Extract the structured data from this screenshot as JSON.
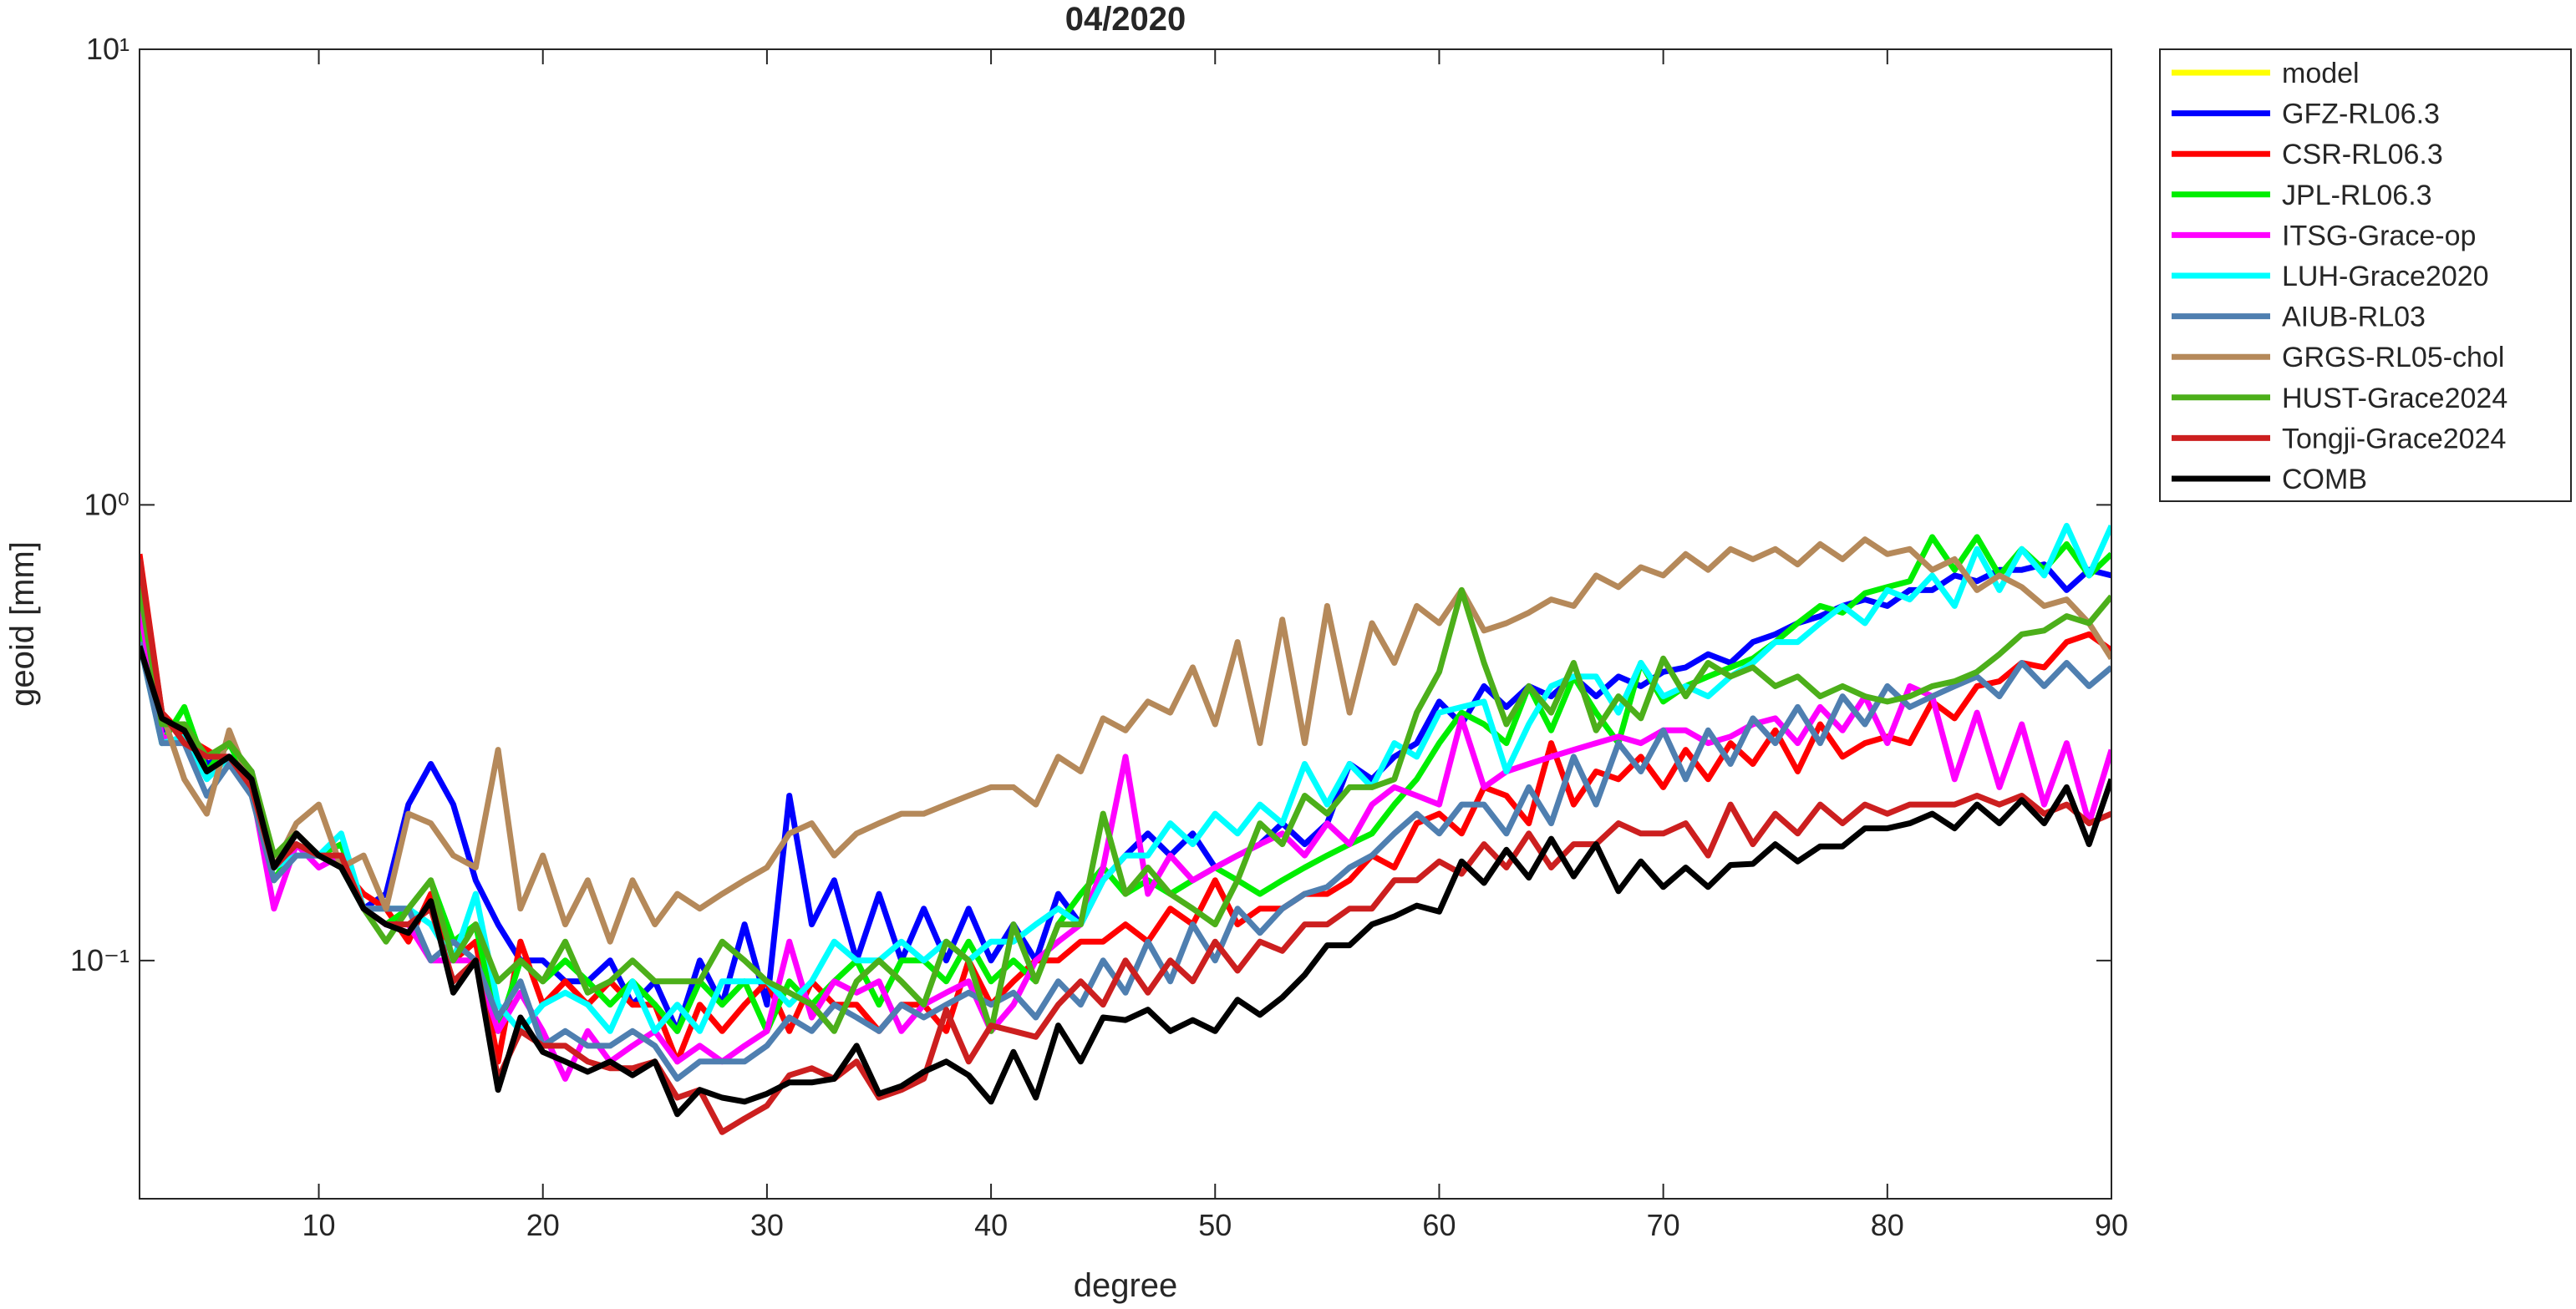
{
  "chart_data": {
    "type": "line",
    "title": "04/2020",
    "x_label": "degree",
    "y_label": "geoid [mm]",
    "yscale": "log",
    "grid": false,
    "legend": "northeastoutside",
    "xlim": [
      2,
      90
    ],
    "ylim": [
      0.03,
      10
    ],
    "xticks": [
      10,
      20,
      30,
      40,
      50,
      60,
      70,
      80,
      90
    ],
    "yticks": [
      {
        "value": 0.1,
        "label": "10⁻¹"
      },
      {
        "value": 1,
        "label": "10⁰"
      },
      {
        "value": 10,
        "label": "10¹"
      }
    ],
    "x": [
      2,
      3,
      4,
      5,
      6,
      7,
      8,
      9,
      10,
      11,
      12,
      13,
      14,
      15,
      16,
      17,
      18,
      19,
      20,
      21,
      22,
      23,
      24,
      25,
      26,
      27,
      28,
      29,
      30,
      31,
      32,
      33,
      34,
      35,
      36,
      37,
      38,
      39,
      40,
      41,
      42,
      43,
      44,
      45,
      46,
      47,
      48,
      49,
      50,
      51,
      52,
      53,
      54,
      55,
      56,
      57,
      58,
      59,
      60,
      61,
      62,
      63,
      64,
      65,
      66,
      67,
      68,
      69,
      70,
      71,
      72,
      73,
      74,
      75,
      76,
      77,
      78,
      79,
      80,
      81,
      82,
      83,
      84,
      85,
      86,
      87,
      88,
      89,
      90
    ],
    "series": [
      {
        "name": "model",
        "color": "#ffff00",
        "values": [
          null,
          null,
          null,
          null,
          null,
          null,
          null,
          null,
          null,
          null,
          null,
          null,
          null,
          null,
          null,
          null,
          null,
          null,
          null,
          null,
          null,
          null,
          null,
          null,
          null,
          null,
          null,
          null,
          null,
          null,
          null,
          null,
          null,
          null,
          null,
          null,
          null,
          null,
          null,
          null,
          null,
          null,
          null,
          null,
          null,
          null,
          null,
          null,
          null,
          null,
          null,
          null,
          null,
          null,
          null,
          null,
          null,
          null,
          null,
          null,
          null,
          null,
          null,
          null,
          null,
          null,
          null,
          null,
          null,
          null,
          null,
          null,
          null,
          null,
          null,
          null,
          null,
          null,
          null,
          null,
          null,
          null,
          null,
          null,
          null,
          null,
          null,
          null,
          null
        ]
      },
      {
        "name": "GFZ-RL06.3",
        "color": "#0000ff",
        "values": [
          0.6,
          0.32,
          0.33,
          0.27,
          0.28,
          0.26,
          0.16,
          0.19,
          0.17,
          0.16,
          0.13,
          0.14,
          0.22,
          0.27,
          0.22,
          0.15,
          0.12,
          0.1,
          0.1,
          0.09,
          0.09,
          0.1,
          0.08,
          0.09,
          0.07,
          0.1,
          0.08,
          0.12,
          0.08,
          0.23,
          0.12,
          0.15,
          0.1,
          0.14,
          0.1,
          0.13,
          0.1,
          0.13,
          0.1,
          0.12,
          0.1,
          0.14,
          0.12,
          0.15,
          0.17,
          0.19,
          0.17,
          0.19,
          0.16,
          0.17,
          0.18,
          0.2,
          0.18,
          0.2,
          0.27,
          0.25,
          0.28,
          0.3,
          0.37,
          0.33,
          0.4,
          0.36,
          0.4,
          0.38,
          0.42,
          0.38,
          0.42,
          0.4,
          0.43,
          0.44,
          0.47,
          0.45,
          0.5,
          0.52,
          0.55,
          0.57,
          0.6,
          0.62,
          0.6,
          0.65,
          0.65,
          0.7,
          0.68,
          0.72,
          0.72,
          0.74,
          0.65,
          0.72,
          0.7
        ]
      },
      {
        "name": "CSR-RL06.3",
        "color": "#ff0000",
        "values": [
          0.78,
          0.35,
          0.31,
          0.29,
          0.27,
          0.25,
          0.16,
          0.19,
          0.17,
          0.16,
          0.14,
          0.13,
          0.11,
          0.14,
          0.1,
          0.11,
          0.06,
          0.11,
          0.08,
          0.09,
          0.08,
          0.09,
          0.08,
          0.08,
          0.06,
          0.08,
          0.07,
          0.08,
          0.09,
          0.07,
          0.09,
          0.08,
          0.08,
          0.07,
          0.08,
          0.08,
          0.07,
          0.1,
          0.08,
          0.09,
          0.1,
          0.1,
          0.11,
          0.11,
          0.12,
          0.11,
          0.13,
          0.12,
          0.15,
          0.12,
          0.13,
          0.13,
          0.14,
          0.14,
          0.15,
          0.17,
          0.16,
          0.2,
          0.21,
          0.19,
          0.24,
          0.23,
          0.2,
          0.3,
          0.22,
          0.26,
          0.25,
          0.28,
          0.24,
          0.29,
          0.25,
          0.3,
          0.27,
          0.32,
          0.26,
          0.33,
          0.28,
          0.3,
          0.31,
          0.3,
          0.37,
          0.34,
          0.4,
          0.41,
          0.45,
          0.44,
          0.5,
          0.52,
          0.48
        ]
      },
      {
        "name": "JPL-RL06.3",
        "color": "#00ee00",
        "values": [
          0.55,
          0.3,
          0.36,
          0.26,
          0.3,
          0.24,
          0.15,
          0.18,
          0.17,
          0.18,
          0.13,
          0.12,
          0.13,
          0.15,
          0.11,
          0.12,
          0.07,
          0.1,
          0.09,
          0.1,
          0.09,
          0.08,
          0.09,
          0.08,
          0.07,
          0.09,
          0.08,
          0.09,
          0.07,
          0.09,
          0.08,
          0.09,
          0.1,
          0.08,
          0.1,
          0.1,
          0.09,
          0.11,
          0.09,
          0.1,
          0.09,
          0.12,
          0.14,
          0.16,
          0.14,
          0.15,
          0.14,
          0.15,
          0.16,
          0.15,
          0.14,
          0.15,
          0.16,
          0.17,
          0.18,
          0.19,
          0.22,
          0.25,
          0.3,
          0.35,
          0.33,
          0.3,
          0.4,
          0.32,
          0.42,
          0.35,
          0.3,
          0.45,
          0.37,
          0.4,
          0.42,
          0.44,
          0.46,
          0.5,
          0.55,
          0.6,
          0.58,
          0.64,
          0.66,
          0.68,
          0.85,
          0.72,
          0.85,
          0.7,
          0.8,
          0.72,
          0.82,
          0.7,
          0.78
        ]
      },
      {
        "name": "ITSG-Grace-op",
        "color": "#ff00ff",
        "values": [
          0.6,
          0.31,
          0.3,
          0.28,
          0.28,
          0.24,
          0.13,
          0.18,
          0.16,
          0.17,
          0.13,
          0.12,
          0.12,
          0.1,
          0.1,
          0.1,
          0.07,
          0.085,
          0.07,
          0.055,
          0.07,
          0.06,
          0.065,
          0.07,
          0.06,
          0.065,
          0.06,
          0.065,
          0.07,
          0.11,
          0.075,
          0.09,
          0.085,
          0.09,
          0.07,
          0.08,
          0.085,
          0.09,
          0.07,
          0.08,
          0.1,
          0.11,
          0.12,
          0.16,
          0.28,
          0.14,
          0.17,
          0.15,
          0.16,
          0.17,
          0.18,
          0.19,
          0.17,
          0.2,
          0.18,
          0.22,
          0.24,
          0.23,
          0.22,
          0.34,
          0.24,
          0.26,
          0.27,
          0.28,
          0.29,
          0.3,
          0.31,
          0.3,
          0.32,
          0.32,
          0.3,
          0.31,
          0.33,
          0.34,
          0.3,
          0.36,
          0.32,
          0.38,
          0.3,
          0.4,
          0.38,
          0.25,
          0.35,
          0.24,
          0.33,
          0.22,
          0.3,
          0.2,
          0.29
        ]
      },
      {
        "name": "LUH-Grace2020",
        "color": "#00ffff",
        "values": [
          0.5,
          0.3,
          0.31,
          0.25,
          0.28,
          0.24,
          0.16,
          0.17,
          0.17,
          0.19,
          0.13,
          0.13,
          0.13,
          0.12,
          0.1,
          0.14,
          0.08,
          0.07,
          0.08,
          0.085,
          0.08,
          0.07,
          0.09,
          0.07,
          0.08,
          0.07,
          0.09,
          0.09,
          0.09,
          0.08,
          0.09,
          0.11,
          0.1,
          0.1,
          0.11,
          0.1,
          0.11,
          0.1,
          0.11,
          0.11,
          0.12,
          0.13,
          0.12,
          0.15,
          0.17,
          0.17,
          0.2,
          0.18,
          0.21,
          0.19,
          0.22,
          0.2,
          0.27,
          0.22,
          0.27,
          0.24,
          0.3,
          0.28,
          0.35,
          0.36,
          0.37,
          0.26,
          0.33,
          0.4,
          0.42,
          0.42,
          0.35,
          0.45,
          0.38,
          0.4,
          0.38,
          0.42,
          0.45,
          0.5,
          0.5,
          0.55,
          0.6,
          0.55,
          0.65,
          0.62,
          0.7,
          0.6,
          0.8,
          0.65,
          0.8,
          0.7,
          0.9,
          0.7,
          0.9
        ]
      },
      {
        "name": "AIUB-RL03",
        "color": "#4f7fb0",
        "values": [
          0.5,
          0.3,
          0.3,
          0.23,
          0.27,
          0.23,
          0.15,
          0.17,
          0.17,
          0.16,
          0.13,
          0.13,
          0.13,
          0.1,
          0.11,
          0.1,
          0.075,
          0.09,
          0.065,
          0.07,
          0.065,
          0.065,
          0.07,
          0.065,
          0.055,
          0.06,
          0.06,
          0.06,
          0.065,
          0.075,
          0.07,
          0.08,
          0.075,
          0.07,
          0.08,
          0.075,
          0.08,
          0.085,
          0.08,
          0.085,
          0.075,
          0.09,
          0.08,
          0.1,
          0.085,
          0.11,
          0.09,
          0.12,
          0.1,
          0.13,
          0.115,
          0.13,
          0.14,
          0.145,
          0.16,
          0.17,
          0.19,
          0.21,
          0.19,
          0.22,
          0.22,
          0.19,
          0.24,
          0.2,
          0.28,
          0.22,
          0.3,
          0.26,
          0.32,
          0.25,
          0.32,
          0.27,
          0.34,
          0.3,
          0.36,
          0.3,
          0.38,
          0.33,
          0.4,
          0.36,
          0.38,
          0.4,
          0.42,
          0.38,
          0.45,
          0.4,
          0.45,
          0.4,
          0.44
        ]
      },
      {
        "name": "GRGS-RL05-chol",
        "color": "#b5895a",
        "values": [
          0.7,
          0.35,
          0.25,
          0.21,
          0.32,
          0.24,
          0.16,
          0.2,
          0.22,
          0.16,
          0.17,
          0.13,
          0.21,
          0.2,
          0.17,
          0.16,
          0.29,
          0.13,
          0.17,
          0.12,
          0.15,
          0.11,
          0.15,
          0.12,
          0.14,
          0.13,
          0.14,
          0.15,
          0.16,
          0.19,
          0.2,
          0.17,
          0.19,
          0.2,
          0.21,
          0.21,
          0.22,
          0.23,
          0.24,
          0.24,
          0.22,
          0.28,
          0.26,
          0.34,
          0.32,
          0.37,
          0.35,
          0.44,
          0.33,
          0.5,
          0.3,
          0.56,
          0.3,
          0.6,
          0.35,
          0.55,
          0.45,
          0.6,
          0.55,
          0.65,
          0.53,
          0.55,
          0.58,
          0.62,
          0.6,
          0.7,
          0.66,
          0.73,
          0.7,
          0.78,
          0.72,
          0.8,
          0.76,
          0.8,
          0.74,
          0.82,
          0.76,
          0.84,
          0.78,
          0.8,
          0.72,
          0.76,
          0.65,
          0.7,
          0.66,
          0.6,
          0.62,
          0.55,
          0.46
        ]
      },
      {
        "name": "HUST-Grace2024",
        "color": "#4caf1a",
        "values": [
          0.66,
          0.33,
          0.33,
          0.28,
          0.3,
          0.26,
          0.17,
          0.19,
          0.17,
          0.16,
          0.13,
          0.11,
          0.13,
          0.15,
          0.1,
          0.12,
          0.09,
          0.1,
          0.09,
          0.11,
          0.085,
          0.09,
          0.1,
          0.09,
          0.09,
          0.09,
          0.11,
          0.1,
          0.09,
          0.085,
          0.08,
          0.07,
          0.09,
          0.1,
          0.09,
          0.08,
          0.11,
          0.1,
          0.07,
          0.12,
          0.09,
          0.12,
          0.12,
          0.21,
          0.14,
          0.16,
          0.14,
          0.13,
          0.12,
          0.15,
          0.2,
          0.18,
          0.23,
          0.21,
          0.24,
          0.24,
          0.25,
          0.35,
          0.43,
          0.65,
          0.45,
          0.33,
          0.4,
          0.35,
          0.45,
          0.32,
          0.38,
          0.34,
          0.46,
          0.38,
          0.45,
          0.42,
          0.44,
          0.4,
          0.42,
          0.38,
          0.4,
          0.38,
          0.37,
          0.38,
          0.4,
          0.41,
          0.43,
          0.47,
          0.52,
          0.53,
          0.57,
          0.55,
          0.63
        ]
      },
      {
        "name": "Tongji-Grace2024",
        "color": "#cc1f1f",
        "values": [
          0.76,
          0.35,
          0.3,
          0.28,
          0.28,
          0.24,
          0.16,
          0.18,
          0.17,
          0.17,
          0.13,
          0.12,
          0.12,
          0.13,
          0.09,
          0.1,
          0.055,
          0.07,
          0.065,
          0.065,
          0.06,
          0.058,
          0.058,
          0.06,
          0.05,
          0.052,
          0.042,
          0.045,
          0.048,
          0.056,
          0.058,
          0.055,
          0.06,
          0.05,
          0.052,
          0.055,
          0.078,
          0.06,
          0.072,
          0.07,
          0.068,
          0.08,
          0.09,
          0.08,
          0.1,
          0.085,
          0.1,
          0.09,
          0.11,
          0.095,
          0.11,
          0.105,
          0.12,
          0.12,
          0.13,
          0.13,
          0.15,
          0.15,
          0.165,
          0.155,
          0.18,
          0.16,
          0.19,
          0.16,
          0.18,
          0.18,
          0.2,
          0.19,
          0.19,
          0.2,
          0.17,
          0.22,
          0.18,
          0.21,
          0.19,
          0.22,
          0.2,
          0.22,
          0.21,
          0.22,
          0.22,
          0.22,
          0.23,
          0.22,
          0.23,
          0.21,
          0.22,
          0.2,
          0.21
        ]
      },
      {
        "name": "COMB",
        "color": "#000000",
        "values": [
          0.49,
          0.34,
          0.32,
          0.26,
          0.28,
          0.25,
          0.16,
          0.19,
          0.17,
          0.16,
          0.13,
          0.12,
          0.115,
          0.135,
          0.085,
          0.1,
          0.052,
          0.075,
          0.063,
          0.06,
          0.057,
          0.06,
          0.056,
          0.06,
          0.046,
          0.052,
          0.05,
          0.049,
          0.051,
          0.054,
          0.054,
          0.055,
          0.065,
          0.051,
          0.053,
          0.057,
          0.06,
          0.056,
          0.049,
          0.063,
          0.05,
          0.072,
          0.06,
          0.075,
          0.074,
          0.078,
          0.07,
          0.074,
          0.07,
          0.082,
          0.076,
          0.083,
          0.093,
          0.108,
          0.108,
          0.12,
          0.125,
          0.132,
          0.128,
          0.165,
          0.148,
          0.175,
          0.152,
          0.185,
          0.153,
          0.18,
          0.142,
          0.165,
          0.145,
          0.16,
          0.145,
          0.162,
          0.163,
          0.18,
          0.165,
          0.178,
          0.178,
          0.195,
          0.195,
          0.2,
          0.21,
          0.195,
          0.22,
          0.2,
          0.225,
          0.2,
          0.24,
          0.18,
          0.25
        ]
      }
    ]
  }
}
